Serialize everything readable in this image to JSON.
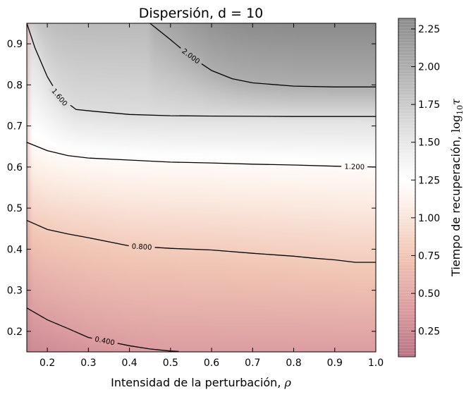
{
  "chart_data": {
    "type": "heatmap",
    "title": "Dispersión, d = 10",
    "xlabel": "Intensidad de la perturbación, ",
    "xlabel_symbol": "ρ",
    "colorbar_label": "Tiempo de recuperación, ",
    "colorbar_symbol": "log",
    "colorbar_sub": "10",
    "colorbar_tau": "τ",
    "xlim": [
      0.15,
      1.0
    ],
    "ylim": [
      0.15,
      0.95
    ],
    "x_ticks": [
      0.2,
      0.3,
      0.4,
      0.5,
      0.6,
      0.7,
      0.8,
      0.9,
      1.0
    ],
    "x_tick_labels": [
      "0.2",
      "0.3",
      "0.4",
      "0.5",
      "0.6",
      "0.7",
      "0.8",
      "0.9",
      "1.0"
    ],
    "y_ticks": [
      0.2,
      0.3,
      0.4,
      0.5,
      0.6,
      0.7,
      0.8,
      0.9
    ],
    "y_tick_labels": [
      "0.2",
      "0.3",
      "0.4",
      "0.5",
      "0.6",
      "0.7",
      "0.8",
      "0.9"
    ],
    "colorbar_range": [
      0.08,
      2.32
    ],
    "colorbar_ticks": [
      0.25,
      0.5,
      0.75,
      1.0,
      1.25,
      1.5,
      1.75,
      2.0,
      2.25
    ],
    "colorbar_tick_labels": [
      "0.25",
      "0.50",
      "0.75",
      "1.00",
      "1.25",
      "1.50",
      "1.75",
      "2.00",
      "2.25"
    ],
    "colormap": [
      {
        "v": 0.08,
        "color": "#b97383"
      },
      {
        "v": 0.4,
        "color": "#dc9da1"
      },
      {
        "v": 0.75,
        "color": "#f1c6b4"
      },
      {
        "v": 1.1,
        "color": "#fdf1ea"
      },
      {
        "v": 1.25,
        "color": "#ffffff"
      },
      {
        "v": 1.55,
        "color": "#e3e3e3"
      },
      {
        "v": 1.95,
        "color": "#b3b3b3"
      },
      {
        "v": 2.32,
        "color": "#8c8c8c"
      }
    ],
    "contours": [
      {
        "level": 0.4,
        "label": "0.400",
        "label_at": [
          0.34,
          0.185
        ],
        "points": [
          [
            0.15,
            0.257
          ],
          [
            0.2,
            0.228
          ],
          [
            0.25,
            0.207
          ],
          [
            0.3,
            0.185
          ],
          [
            0.35,
            0.175
          ],
          [
            0.4,
            0.165
          ],
          [
            0.45,
            0.157
          ],
          [
            0.5,
            0.152
          ],
          [
            0.52,
            0.151
          ]
        ]
      },
      {
        "level": 0.8,
        "label": "0.800",
        "label_at": [
          0.43,
          0.415
        ],
        "points": [
          [
            0.15,
            0.47
          ],
          [
            0.2,
            0.448
          ],
          [
            0.25,
            0.437
          ],
          [
            0.3,
            0.428
          ],
          [
            0.4,
            0.408
          ],
          [
            0.5,
            0.402
          ],
          [
            0.6,
            0.398
          ],
          [
            0.7,
            0.39
          ],
          [
            0.8,
            0.383
          ],
          [
            0.85,
            0.378
          ],
          [
            0.9,
            0.374
          ],
          [
            0.95,
            0.368
          ],
          [
            1.0,
            0.368
          ]
        ]
      },
      {
        "level": 1.2,
        "label": "1.200",
        "label_at": [
          0.948,
          0.602
        ],
        "points": [
          [
            0.15,
            0.66
          ],
          [
            0.2,
            0.64
          ],
          [
            0.25,
            0.628
          ],
          [
            0.3,
            0.622
          ],
          [
            0.4,
            0.617
          ],
          [
            0.5,
            0.612
          ],
          [
            0.6,
            0.61
          ],
          [
            0.7,
            0.607
          ],
          [
            0.8,
            0.605
          ],
          [
            0.9,
            0.602
          ],
          [
            1.0,
            0.6
          ]
        ]
      },
      {
        "level": 1.6,
        "label": "1.600",
        "label_at": [
          0.23,
          0.77
        ],
        "points": [
          [
            0.15,
            0.95
          ],
          [
            0.17,
            0.89
          ],
          [
            0.2,
            0.82
          ],
          [
            0.23,
            0.77
          ],
          [
            0.27,
            0.74
          ],
          [
            0.32,
            0.735
          ],
          [
            0.4,
            0.728
          ],
          [
            0.5,
            0.725
          ],
          [
            0.6,
            0.724
          ],
          [
            0.8,
            0.723
          ],
          [
            1.0,
            0.723
          ]
        ]
      },
      {
        "level": 2.0,
        "label": "2.000",
        "label_at": [
          0.55,
          0.87
        ],
        "points": [
          [
            0.45,
            0.95
          ],
          [
            0.5,
            0.91
          ],
          [
            0.53,
            0.885
          ],
          [
            0.57,
            0.855
          ],
          [
            0.6,
            0.835
          ],
          [
            0.65,
            0.815
          ],
          [
            0.7,
            0.805
          ],
          [
            0.8,
            0.797
          ],
          [
            0.9,
            0.795
          ],
          [
            1.0,
            0.795
          ]
        ]
      }
    ]
  }
}
